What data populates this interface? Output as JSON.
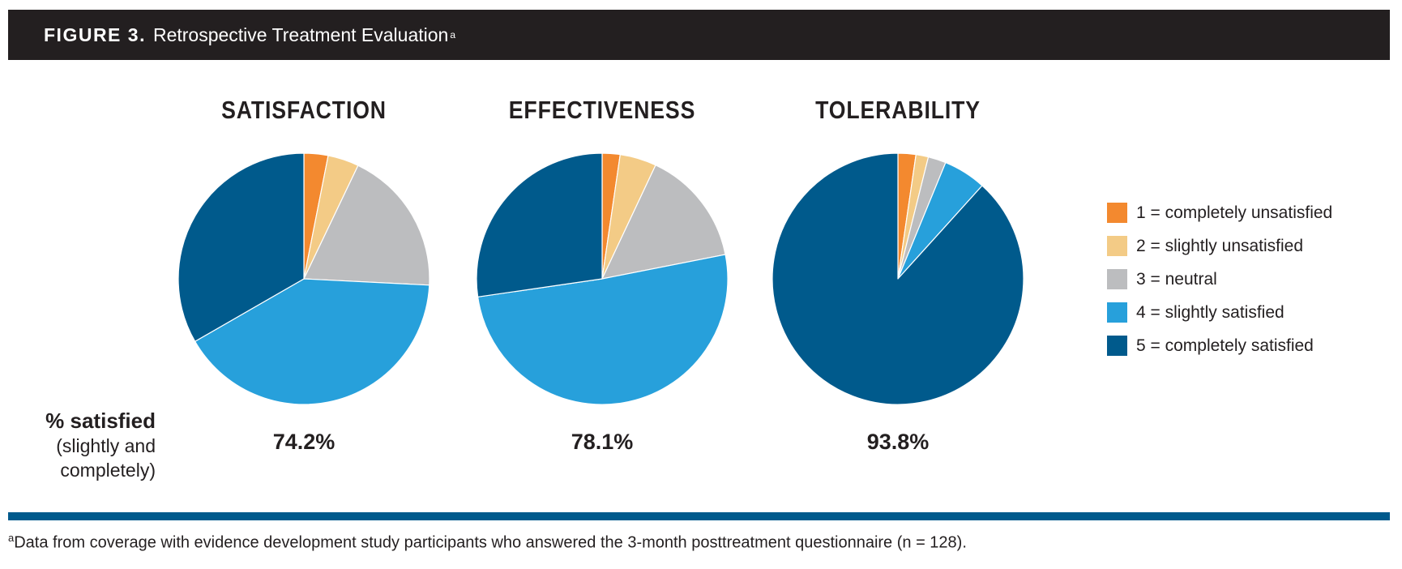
{
  "figure": {
    "label": "FIGURE 3.",
    "title": "Retrospective Treatment Evaluation",
    "title_superscript": "a"
  },
  "row_label": {
    "main": "% satisfied",
    "sub": "(slightly and completely)"
  },
  "colors": {
    "header_bg": "#231f20",
    "rule": "#005a8c",
    "c1": "#f3892f",
    "c2": "#f3cb86",
    "c3": "#bcbdbf",
    "c4": "#27a0db",
    "c5": "#005a8c"
  },
  "chart_data": [
    {
      "type": "pie",
      "title": "SATISFACTION",
      "categories": [
        "1 = completely unsatisfied",
        "2 = slightly unsatisfied",
        "3 = neutral",
        "4 = slightly satisfied",
        "5 = completely satisfied"
      ],
      "values": [
        3.1,
        4.0,
        18.7,
        40.9,
        33.3
      ],
      "unit": "%",
      "percent_satisfied": "74.2%"
    },
    {
      "type": "pie",
      "title": "EFFECTIVENESS",
      "categories": [
        "1 = completely unsatisfied",
        "2 = slightly unsatisfied",
        "3 = neutral",
        "4 = slightly satisfied",
        "5 = completely satisfied"
      ],
      "values": [
        2.3,
        4.7,
        14.9,
        50.8,
        27.3
      ],
      "unit": "%",
      "percent_satisfied": "78.1%"
    },
    {
      "type": "pie",
      "title": "TOLERABILITY",
      "categories": [
        "1 = completely unsatisfied",
        "2 = slightly unsatisfied",
        "3 = neutral",
        "4 = slightly satisfied",
        "5 = completely satisfied"
      ],
      "values": [
        2.3,
        1.6,
        2.3,
        5.5,
        88.3
      ],
      "unit": "%",
      "percent_satisfied": "93.8%"
    }
  ],
  "legend": {
    "items": [
      {
        "label": "1 = completely unsatisfied",
        "color": "#f3892f"
      },
      {
        "label": "2 = slightly unsatisfied",
        "color": "#f3cb86"
      },
      {
        "label": "3 = neutral",
        "color": "#bcbdbf"
      },
      {
        "label": "4 = slightly satisfied",
        "color": "#27a0db"
      },
      {
        "label": "5 = completely satisfied",
        "color": "#005a8c"
      }
    ]
  },
  "footnote": {
    "marker": "a",
    "text": "Data from coverage with evidence development study participants who answered the 3-month posttreatment questionnaire (n = 128)."
  }
}
